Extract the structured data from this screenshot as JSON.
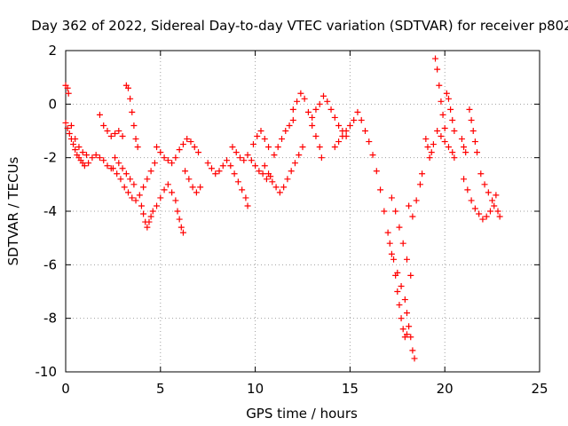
{
  "chart_data": {
    "type": "scatter",
    "title": "Day 362 of 2022, Sidereal Day-to-day VTEC variation (SDTVAR) for receiver p802",
    "xlabel": "GPS time / hours",
    "ylabel": "SDTVAR / TECUs",
    "xlim": [
      0,
      25
    ],
    "ylim": [
      -10,
      2
    ],
    "xticks": [
      0,
      5,
      10,
      15,
      20,
      25
    ],
    "yticks": [
      2,
      0,
      -2,
      -4,
      -6,
      -8,
      -10
    ],
    "grid": true,
    "marker": "+",
    "color": "#ff0000",
    "series": [
      {
        "name": "SDTVAR",
        "points": [
          [
            0,
            0.7
          ],
          [
            0.1,
            0.6
          ],
          [
            0.15,
            0.4
          ],
          [
            0.0,
            -0.7
          ],
          [
            0.1,
            -0.9
          ],
          [
            0.2,
            -1.1
          ],
          [
            0.3,
            -1.3
          ],
          [
            0.4,
            -1.5
          ],
          [
            0.5,
            -1.7
          ],
          [
            0.6,
            -1.9
          ],
          [
            0.7,
            -2.0
          ],
          [
            0.8,
            -2.1
          ],
          [
            0.9,
            -2.2
          ],
          [
            1.0,
            -2.3
          ],
          [
            1.2,
            -2.2
          ],
          [
            1.4,
            -2.0
          ],
          [
            1.6,
            -1.9
          ],
          [
            1.8,
            -2.0
          ],
          [
            2.0,
            -2.1
          ],
          [
            2.2,
            -2.3
          ],
          [
            2.4,
            -2.4
          ],
          [
            0.3,
            -0.8
          ],
          [
            0.5,
            -1.3
          ],
          [
            0.7,
            -1.6
          ],
          [
            0.9,
            -1.8
          ],
          [
            1.1,
            -1.9
          ],
          [
            1.8,
            -0.4
          ],
          [
            2.0,
            -0.8
          ],
          [
            2.2,
            -1.0
          ],
          [
            2.4,
            -1.2
          ],
          [
            2.6,
            -1.1
          ],
          [
            2.8,
            -1.0
          ],
          [
            3.0,
            -1.2
          ],
          [
            3.2,
            0.7
          ],
          [
            3.3,
            0.6
          ],
          [
            3.4,
            0.2
          ],
          [
            3.5,
            -0.3
          ],
          [
            3.6,
            -0.8
          ],
          [
            3.7,
            -1.3
          ],
          [
            3.8,
            -1.6
          ],
          [
            2.5,
            -2.4
          ],
          [
            2.7,
            -2.6
          ],
          [
            2.9,
            -2.8
          ],
          [
            3.1,
            -3.1
          ],
          [
            3.3,
            -3.3
          ],
          [
            3.5,
            -3.5
          ],
          [
            3.7,
            -3.6
          ],
          [
            3.9,
            -3.4
          ],
          [
            4.1,
            -3.1
          ],
          [
            4.3,
            -2.8
          ],
          [
            4.5,
            -2.5
          ],
          [
            4.7,
            -2.2
          ],
          [
            2.6,
            -2.0
          ],
          [
            2.8,
            -2.2
          ],
          [
            3.0,
            -2.4
          ],
          [
            3.2,
            -2.6
          ],
          [
            3.4,
            -2.8
          ],
          [
            3.6,
            -3.0
          ],
          [
            4.0,
            -3.8
          ],
          [
            4.1,
            -4.1
          ],
          [
            4.2,
            -4.4
          ],
          [
            4.3,
            -4.6
          ],
          [
            4.4,
            -4.4
          ],
          [
            4.5,
            -4.2
          ],
          [
            4.6,
            -4.0
          ],
          [
            4.8,
            -3.8
          ],
          [
            5.0,
            -3.5
          ],
          [
            5.2,
            -3.2
          ],
          [
            5.4,
            -3.0
          ],
          [
            5.6,
            -3.3
          ],
          [
            5.8,
            -3.6
          ],
          [
            5.9,
            -4.0
          ],
          [
            6.0,
            -4.3
          ],
          [
            6.1,
            -4.6
          ],
          [
            6.2,
            -4.8
          ],
          [
            4.8,
            -1.6
          ],
          [
            5.0,
            -1.8
          ],
          [
            5.2,
            -2.0
          ],
          [
            5.4,
            -2.1
          ],
          [
            5.6,
            -2.2
          ],
          [
            5.8,
            -2.0
          ],
          [
            6.0,
            -1.7
          ],
          [
            6.2,
            -1.5
          ],
          [
            6.4,
            -1.3
          ],
          [
            6.6,
            -1.4
          ],
          [
            6.8,
            -1.6
          ],
          [
            7.0,
            -1.8
          ],
          [
            6.3,
            -2.5
          ],
          [
            6.5,
            -2.8
          ],
          [
            6.7,
            -3.1
          ],
          [
            6.9,
            -3.3
          ],
          [
            7.1,
            -3.1
          ],
          [
            7.5,
            -2.2
          ],
          [
            7.7,
            -2.4
          ],
          [
            7.9,
            -2.6
          ],
          [
            8.1,
            -2.5
          ],
          [
            8.3,
            -2.3
          ],
          [
            8.5,
            -2.1
          ],
          [
            8.7,
            -2.3
          ],
          [
            8.9,
            -2.6
          ],
          [
            9.1,
            -2.9
          ],
          [
            9.3,
            -3.2
          ],
          [
            9.5,
            -3.5
          ],
          [
            9.6,
            -3.8
          ],
          [
            8.8,
            -1.6
          ],
          [
            9.0,
            -1.8
          ],
          [
            9.2,
            -2.0
          ],
          [
            9.4,
            -2.1
          ],
          [
            9.6,
            -1.9
          ],
          [
            9.8,
            -2.1
          ],
          [
            10.0,
            -2.3
          ],
          [
            10.2,
            -2.5
          ],
          [
            10.4,
            -2.6
          ],
          [
            10.6,
            -2.8
          ],
          [
            10.8,
            -2.7
          ],
          [
            9.9,
            -1.5
          ],
          [
            10.1,
            -1.2
          ],
          [
            10.3,
            -1.0
          ],
          [
            10.5,
            -1.3
          ],
          [
            10.7,
            -1.6
          ],
          [
            10.5,
            -2.3
          ],
          [
            10.7,
            -2.6
          ],
          [
            10.9,
            -2.9
          ],
          [
            11.1,
            -3.1
          ],
          [
            11.3,
            -3.3
          ],
          [
            11.5,
            -3.1
          ],
          [
            11.7,
            -2.8
          ],
          [
            11.9,
            -2.5
          ],
          [
            12.1,
            -2.2
          ],
          [
            12.3,
            -1.9
          ],
          [
            12.5,
            -1.6
          ],
          [
            11.0,
            -1.9
          ],
          [
            11.2,
            -1.6
          ],
          [
            11.4,
            -1.3
          ],
          [
            11.6,
            -1.0
          ],
          [
            11.8,
            -0.8
          ],
          [
            12.0,
            -0.6
          ],
          [
            12.0,
            -0.2
          ],
          [
            12.2,
            0.1
          ],
          [
            12.4,
            0.4
          ],
          [
            12.6,
            0.2
          ],
          [
            12.8,
            -0.3
          ],
          [
            13.0,
            -0.8
          ],
          [
            13.2,
            -1.2
          ],
          [
            13.4,
            -1.6
          ],
          [
            13.5,
            -2.0
          ],
          [
            13.0,
            -0.5
          ],
          [
            13.2,
            -0.2
          ],
          [
            13.4,
            0.0
          ],
          [
            13.6,
            0.3
          ],
          [
            13.8,
            0.1
          ],
          [
            14.0,
            -0.2
          ],
          [
            14.2,
            -0.5
          ],
          [
            14.4,
            -0.8
          ],
          [
            14.6,
            -1.0
          ],
          [
            14.8,
            -1.2
          ],
          [
            14.2,
            -1.6
          ],
          [
            14.4,
            -1.4
          ],
          [
            14.6,
            -1.2
          ],
          [
            14.8,
            -1.0
          ],
          [
            15.0,
            -0.8
          ],
          [
            15.2,
            -0.6
          ],
          [
            15.4,
            -0.3
          ],
          [
            15.6,
            -0.6
          ],
          [
            15.8,
            -1.0
          ],
          [
            16.0,
            -1.4
          ],
          [
            16.2,
            -1.9
          ],
          [
            16.4,
            -2.5
          ],
          [
            16.6,
            -3.2
          ],
          [
            16.8,
            -4.0
          ],
          [
            17.0,
            -4.8
          ],
          [
            17.2,
            -5.6
          ],
          [
            17.4,
            -6.4
          ],
          [
            17.5,
            -7.0
          ],
          [
            17.1,
            -5.2
          ],
          [
            17.3,
            -5.8
          ],
          [
            17.5,
            -6.3
          ],
          [
            17.7,
            -6.8
          ],
          [
            17.9,
            -7.3
          ],
          [
            18.0,
            -7.8
          ],
          [
            18.1,
            -8.3
          ],
          [
            18.2,
            -8.7
          ],
          [
            18.3,
            -9.2
          ],
          [
            18.4,
            -9.5
          ],
          [
            17.6,
            -7.5
          ],
          [
            17.7,
            -8.0
          ],
          [
            17.8,
            -8.4
          ],
          [
            17.9,
            -8.7
          ],
          [
            18.0,
            -8.6
          ],
          [
            17.2,
            -3.5
          ],
          [
            17.4,
            -4.0
          ],
          [
            17.6,
            -4.6
          ],
          [
            17.8,
            -5.2
          ],
          [
            18.0,
            -5.8
          ],
          [
            18.2,
            -6.4
          ],
          [
            18.1,
            -3.8
          ],
          [
            18.3,
            -4.2
          ],
          [
            18.5,
            -3.6
          ],
          [
            18.7,
            -3.0
          ],
          [
            18.8,
            -2.6
          ],
          [
            19.0,
            -1.3
          ],
          [
            19.1,
            -1.6
          ],
          [
            19.2,
            -2.0
          ],
          [
            19.3,
            -1.8
          ],
          [
            19.4,
            -1.5
          ],
          [
            19.5,
            1.7
          ],
          [
            19.6,
            1.3
          ],
          [
            19.7,
            0.7
          ],
          [
            19.8,
            0.1
          ],
          [
            19.9,
            -0.4
          ],
          [
            20.0,
            -0.9
          ],
          [
            19.6,
            -1.0
          ],
          [
            19.8,
            -1.2
          ],
          [
            20.0,
            -1.4
          ],
          [
            20.2,
            -1.6
          ],
          [
            20.4,
            -1.8
          ],
          [
            20.5,
            -2.0
          ],
          [
            20.1,
            0.4
          ],
          [
            20.2,
            0.2
          ],
          [
            20.3,
            -0.2
          ],
          [
            20.4,
            -0.6
          ],
          [
            20.5,
            -1.0
          ],
          [
            20.9,
            -1.3
          ],
          [
            21.0,
            -1.6
          ],
          [
            21.1,
            -1.8
          ],
          [
            21.3,
            -0.2
          ],
          [
            21.4,
            -0.6
          ],
          [
            21.5,
            -1.0
          ],
          [
            21.6,
            -1.4
          ],
          [
            21.7,
            -1.8
          ],
          [
            21.0,
            -2.8
          ],
          [
            21.2,
            -3.2
          ],
          [
            21.4,
            -3.6
          ],
          [
            21.6,
            -3.9
          ],
          [
            21.8,
            -4.1
          ],
          [
            22.0,
            -4.3
          ],
          [
            22.2,
            -4.2
          ],
          [
            22.4,
            -4.0
          ],
          [
            22.6,
            -3.8
          ],
          [
            22.8,
            -4.0
          ],
          [
            22.9,
            -4.2
          ],
          [
            21.9,
            -2.6
          ],
          [
            22.1,
            -3.0
          ],
          [
            22.3,
            -3.3
          ],
          [
            22.5,
            -3.6
          ],
          [
            22.7,
            -3.4
          ]
        ]
      }
    ]
  }
}
